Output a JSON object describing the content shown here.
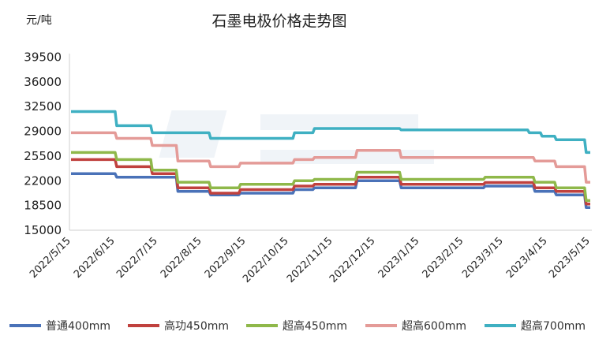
{
  "chart_data": {
    "type": "line",
    "title": "石墨电极价格走势图",
    "unit_label": "元/吨",
    "xlabel": "",
    "ylabel": "元/吨",
    "y_ticks": [
      "39500",
      "36000",
      "32500",
      "29000",
      "25500",
      "22000",
      "18500",
      "15000"
    ],
    "ylim": [
      15000,
      40000
    ],
    "x_range": [
      "2022/5/15",
      "2023/5/15"
    ],
    "x_ticks": [
      {
        "label": "2022/5/15",
        "date": "2022-05-15"
      },
      {
        "label": "2022/6/15",
        "date": "2022-06-15"
      },
      {
        "label": "2022/7/15",
        "date": "2022-07-15"
      },
      {
        "label": "2022/8/15",
        "date": "2022-08-15"
      },
      {
        "label": "2022/9/15",
        "date": "2022-09-15"
      },
      {
        "label": "2022/10/15",
        "date": "2022-10-15"
      },
      {
        "label": "2022/11/15",
        "date": "2022-11-15"
      },
      {
        "label": "2022/12/15",
        "date": "2022-12-15"
      },
      {
        "label": "2023/1/15",
        "date": "2023-01-15"
      },
      {
        "label": "2023/2/15",
        "date": "2023-02-15"
      },
      {
        "label": "2023/3/15",
        "date": "2023-03-15"
      },
      {
        "label": "2023/4/15",
        "date": "2023-04-15"
      },
      {
        "label": "2023/5/15",
        "date": "2023-05-15"
      }
    ],
    "grid": false,
    "legend_position": "bottom",
    "series": [
      {
        "name": "普通400mm",
        "color": "#4a72b8",
        "points": [
          {
            "date": "2022-05-15",
            "value": 23000
          },
          {
            "date": "2022-06-15",
            "value": 22500
          },
          {
            "date": "2022-07-28",
            "value": 20500
          },
          {
            "date": "2022-08-20",
            "value": 20000
          },
          {
            "date": "2022-09-10",
            "value": 20250
          },
          {
            "date": "2022-10-18",
            "value": 20750
          },
          {
            "date": "2022-11-01",
            "value": 21000
          },
          {
            "date": "2022-12-01",
            "value": 22000
          },
          {
            "date": "2023-01-01",
            "value": 21000
          },
          {
            "date": "2023-03-01",
            "value": 21250
          },
          {
            "date": "2023-04-05",
            "value": 20500
          },
          {
            "date": "2023-04-20",
            "value": 20000
          },
          {
            "date": "2023-05-11",
            "value": 18200
          }
        ]
      },
      {
        "name": "高功450mm",
        "color": "#c0413e",
        "points": [
          {
            "date": "2022-05-15",
            "value": 25000
          },
          {
            "date": "2022-06-15",
            "value": 24000
          },
          {
            "date": "2022-07-10",
            "value": 23000
          },
          {
            "date": "2022-07-28",
            "value": 21000
          },
          {
            "date": "2022-08-20",
            "value": 20250
          },
          {
            "date": "2022-09-10",
            "value": 20750
          },
          {
            "date": "2022-10-18",
            "value": 21250
          },
          {
            "date": "2022-11-01",
            "value": 21500
          },
          {
            "date": "2022-12-01",
            "value": 22500
          },
          {
            "date": "2023-01-01",
            "value": 21500
          },
          {
            "date": "2023-03-01",
            "value": 21750
          },
          {
            "date": "2023-04-05",
            "value": 21000
          },
          {
            "date": "2023-04-20",
            "value": 20500
          },
          {
            "date": "2023-05-11",
            "value": 18700
          }
        ]
      },
      {
        "name": "超高450mm",
        "color": "#8fb84a",
        "points": [
          {
            "date": "2022-05-15",
            "value": 26000
          },
          {
            "date": "2022-06-15",
            "value": 25000
          },
          {
            "date": "2022-07-10",
            "value": 23500
          },
          {
            "date": "2022-07-28",
            "value": 21800
          },
          {
            "date": "2022-08-20",
            "value": 21000
          },
          {
            "date": "2022-09-10",
            "value": 21500
          },
          {
            "date": "2022-10-18",
            "value": 22000
          },
          {
            "date": "2022-11-01",
            "value": 22200
          },
          {
            "date": "2022-12-01",
            "value": 23200
          },
          {
            "date": "2023-01-01",
            "value": 22200
          },
          {
            "date": "2023-03-01",
            "value": 22500
          },
          {
            "date": "2023-04-05",
            "value": 21800
          },
          {
            "date": "2023-04-20",
            "value": 21000
          },
          {
            "date": "2023-05-11",
            "value": 19200
          }
        ]
      },
      {
        "name": "超高600mm",
        "color": "#e49b98",
        "points": [
          {
            "date": "2022-05-15",
            "value": 28800
          },
          {
            "date": "2022-06-15",
            "value": 28000
          },
          {
            "date": "2022-07-10",
            "value": 27000
          },
          {
            "date": "2022-07-28",
            "value": 24800
          },
          {
            "date": "2022-08-20",
            "value": 24000
          },
          {
            "date": "2022-09-10",
            "value": 24500
          },
          {
            "date": "2022-10-18",
            "value": 25000
          },
          {
            "date": "2022-11-01",
            "value": 25300
          },
          {
            "date": "2022-12-01",
            "value": 26300
          },
          {
            "date": "2023-01-01",
            "value": 25300
          },
          {
            "date": "2023-04-05",
            "value": 24800
          },
          {
            "date": "2023-04-20",
            "value": 24000
          },
          {
            "date": "2023-05-11",
            "value": 21800
          }
        ]
      },
      {
        "name": "超高700mm",
        "color": "#3fb0c2",
        "points": [
          {
            "date": "2022-05-15",
            "value": 31800
          },
          {
            "date": "2022-06-15",
            "value": 29800
          },
          {
            "date": "2022-07-10",
            "value": 28800
          },
          {
            "date": "2022-08-20",
            "value": 28000
          },
          {
            "date": "2022-10-18",
            "value": 28800
          },
          {
            "date": "2022-11-01",
            "value": 29400
          },
          {
            "date": "2023-01-01",
            "value": 29200
          },
          {
            "date": "2023-04-01",
            "value": 28800
          },
          {
            "date": "2023-04-10",
            "value": 28300
          },
          {
            "date": "2023-04-20",
            "value": 27800
          },
          {
            "date": "2023-05-11",
            "value": 26000
          }
        ]
      }
    ]
  }
}
